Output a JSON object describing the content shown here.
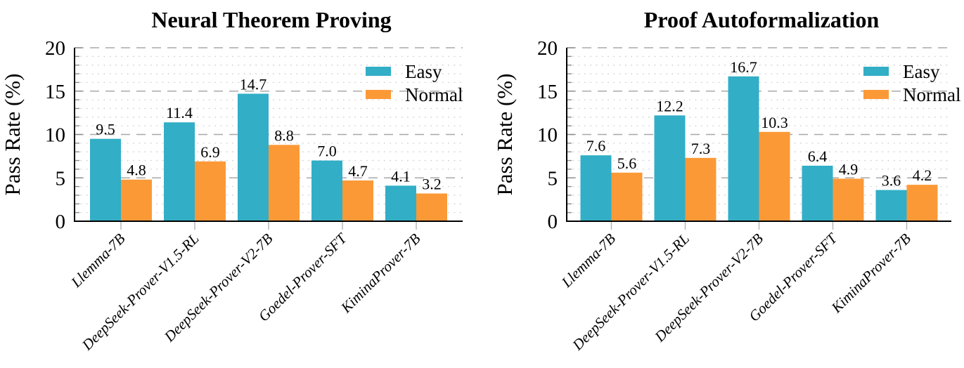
{
  "figure": {
    "background": "#ffffff",
    "text_color": "#000000"
  },
  "colors": {
    "easy": "#32AEC7",
    "normal": "#FC9937",
    "grid_major": "#a8a8a8",
    "grid_minor": "#cfcfcf",
    "tick": "#8a8a8a",
    "x_tick": "#b4b4b4",
    "axis": "#000000"
  },
  "chart_data": [
    {
      "type": "bar",
      "title": "Neural Theorem Proving",
      "ylabel": "Pass Rate (%)",
      "xlabel": "",
      "ylim": [
        0,
        20
      ],
      "yticks": [
        0,
        5,
        10,
        15,
        20
      ],
      "minor_unit": 1,
      "grid": {
        "major": "dashed",
        "minor": "dotted"
      },
      "legend_position": "top-right",
      "bar_labels": true,
      "categories": [
        "Llemma-7B",
        "DeepSeek-Prover-V1.5-RL",
        "DeepSeek-Prover-V2-7B",
        "Goedel-Prover-SFT",
        "KiminaProver-7B"
      ],
      "series": [
        {
          "name": "Easy",
          "color": "#32AEC7",
          "values": [
            9.5,
            11.4,
            14.7,
            7.0,
            4.1
          ]
        },
        {
          "name": "Normal",
          "color": "#FC9937",
          "values": [
            4.8,
            6.9,
            8.8,
            4.7,
            3.2
          ]
        }
      ]
    },
    {
      "type": "bar",
      "title": "Proof Autoformalization",
      "ylabel": "Pass Rate (%)",
      "xlabel": "",
      "ylim": [
        0,
        20
      ],
      "yticks": [
        0,
        5,
        10,
        15,
        20
      ],
      "minor_unit": 1,
      "grid": {
        "major": "dashed",
        "minor": "dotted"
      },
      "legend_position": "top-right",
      "bar_labels": true,
      "categories": [
        "Llemma-7B",
        "DeepSeek-Prover-V1.5-RL",
        "DeepSeek-Prover-V2-7B",
        "Goedel-Prover-SFT",
        "KiminaProver-7B"
      ],
      "series": [
        {
          "name": "Easy",
          "color": "#32AEC7",
          "values": [
            7.6,
            12.2,
            16.7,
            6.4,
            3.6
          ]
        },
        {
          "name": "Normal",
          "color": "#FC9937",
          "values": [
            5.6,
            7.3,
            10.3,
            4.9,
            4.2
          ]
        }
      ]
    }
  ]
}
